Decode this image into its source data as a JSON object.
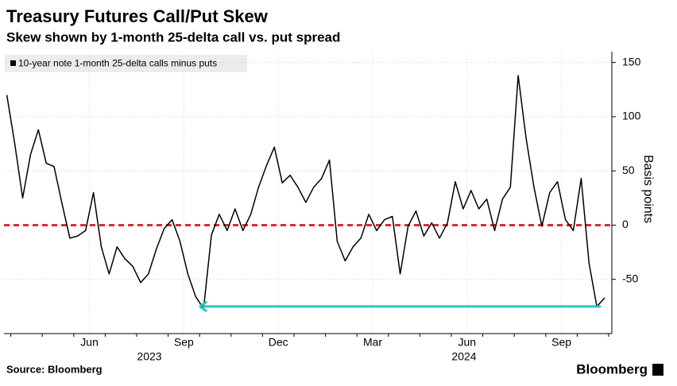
{
  "chart_data": {
    "type": "line",
    "title": "Treasury Futures Call/Put Skew",
    "subtitle": "Skew shown by 1-month 25-delta call vs. put spread",
    "y_axis_label": "Basis points",
    "source": "Source: Bloomberg",
    "brand": "Bloomberg",
    "ylim": [
      -100,
      160
    ],
    "yticks": [
      -50,
      0,
      50,
      100,
      150
    ],
    "grid": true,
    "xticks": [
      {
        "value": "2023-06",
        "label": "Jun"
      },
      {
        "value": "2023-09",
        "label": "Sep"
      },
      {
        "value": "2023-12",
        "label": "Dec"
      },
      {
        "value": "2024-03",
        "label": "Mar"
      },
      {
        "value": "2024-06",
        "label": "Jun"
      },
      {
        "value": "2024-09",
        "label": "Sep"
      }
    ],
    "year_labels": [
      {
        "value": "2023-08",
        "label": "2023"
      },
      {
        "value": "2024-06",
        "label": "2024"
      }
    ],
    "reference_line": {
      "value": 0,
      "color": "#d62c3b"
    },
    "arrow": {
      "value": -75,
      "x": [
        "2024-10",
        "2023-10"
      ],
      "color": "#2ec4c4"
    },
    "legend": "top-left",
    "x": [
      "2023-03",
      "2023-04",
      "2023-04",
      "2023-04",
      "2023-04",
      "2023-05",
      "2023-05",
      "2023-05",
      "2023-05",
      "2023-06",
      "2023-06",
      "2023-06",
      "2023-06",
      "2023-07",
      "2023-07",
      "2023-07",
      "2023-07",
      "2023-08",
      "2023-08",
      "2023-08",
      "2023-08",
      "2023-09",
      "2023-09",
      "2023-09",
      "2023-09",
      "2023-10",
      "2023-10",
      "2023-10",
      "2023-10",
      "2023-11",
      "2023-11",
      "2023-11",
      "2023-11",
      "2023-12",
      "2023-12",
      "2023-12",
      "2023-12",
      "2024-01",
      "2024-01",
      "2024-01",
      "2024-01",
      "2024-02",
      "2024-02",
      "2024-02",
      "2024-02",
      "2024-03",
      "2024-03",
      "2024-03",
      "2024-03",
      "2024-04",
      "2024-04",
      "2024-04",
      "2024-04",
      "2024-05",
      "2024-05",
      "2024-05",
      "2024-05",
      "2024-06",
      "2024-06",
      "2024-06",
      "2024-06",
      "2024-07",
      "2024-07",
      "2024-07",
      "2024-07",
      "2024-08",
      "2024-08",
      "2024-08",
      "2024-08",
      "2024-09",
      "2024-09",
      "2024-09",
      "2024-09",
      "2024-10",
      "2024-10",
      "2024-10",
      "2024-10"
    ],
    "series": [
      {
        "name": "10-year note 1-month 25-delta calls minus puts",
        "color": "#000000",
        "values": [
          120,
          75,
          25,
          65,
          88,
          57,
          54,
          20,
          -12,
          -10,
          -5,
          30,
          -20,
          -45,
          -20,
          -31,
          -38,
          -53,
          -45,
          -22,
          -3,
          5,
          -15,
          -45,
          -66,
          -77,
          -9,
          10,
          -5,
          15,
          -5,
          10,
          35,
          55,
          72,
          39,
          46,
          35,
          21,
          35,
          43,
          60,
          -15,
          -33,
          -20,
          -12,
          10,
          -5,
          5,
          8,
          -45,
          -1,
          13,
          -10,
          2,
          -12,
          2,
          40,
          15,
          32,
          15,
          24,
          -5,
          24,
          35,
          138,
          80,
          35,
          -1,
          30,
          40,
          5,
          -5,
          43,
          -35,
          -75,
          -67
        ]
      }
    ]
  }
}
